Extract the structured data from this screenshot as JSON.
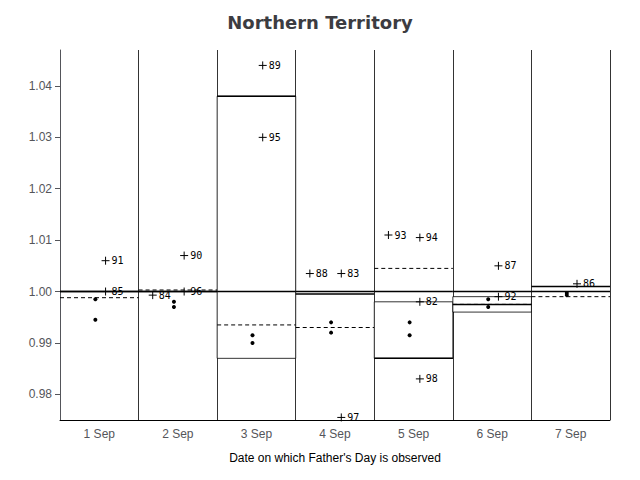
{
  "chart_data": {
    "type": "box",
    "title": "Northern Territory",
    "xlabel": "Date on which Father's Day is observed",
    "categories": [
      "1 Sep",
      "2 Sep",
      "3 Sep",
      "4 Sep",
      "5 Sep",
      "6 Sep",
      "7 Sep"
    ],
    "ylim": [
      0.975,
      1.047
    ],
    "yticks": [
      0.98,
      0.99,
      {
        "value": 1.0,
        "label": "1.00"
      },
      1.01,
      1.02,
      1.03,
      1.04
    ],
    "grid": "x",
    "reference_line": 1.0,
    "groups": [
      {
        "median": 1.0,
        "mean": 0.9988,
        "dots": [
          0.9945,
          0.9985
        ],
        "points": [
          {
            "label": "91",
            "value": 1.006
          },
          {
            "label": "85",
            "value": 1.0
          }
        ],
        "box": null
      },
      {
        "median": 1.0,
        "mean": 1.0003,
        "dots": [
          0.998,
          0.997
        ],
        "points": [
          {
            "label": "96",
            "value": 1.0
          },
          {
            "label": "84",
            "value": 0.9993
          },
          {
            "label": "90",
            "value": 1.007
          }
        ],
        "box": null
      },
      {
        "median": 1.038,
        "mean": 0.9935,
        "dots": [
          0.9915,
          0.99
        ],
        "points": [
          {
            "label": "89",
            "value": 1.044
          },
          {
            "label": "95",
            "value": 1.03
          }
        ],
        "box": {
          "top": 1.038,
          "bottom": 0.987
        }
      },
      {
        "median": 0.9995,
        "mean": 0.993,
        "dots": [
          0.994,
          0.992
        ],
        "points": [
          {
            "label": "83",
            "value": 1.0035
          },
          {
            "label": "88",
            "value": 1.0035
          },
          {
            "label": "97",
            "value": 0.9755
          }
        ],
        "box": null
      },
      {
        "median": 0.987,
        "mean": 1.0045,
        "dots": [
          0.994,
          0.9915
        ],
        "points": [
          {
            "label": "94",
            "value": 1.0105
          },
          {
            "label": "93",
            "value": 1.011
          },
          {
            "label": "82",
            "value": 0.998
          },
          {
            "label": "98",
            "value": 0.983
          }
        ],
        "box": {
          "top": 0.998,
          "bottom": 0.987
        }
      },
      {
        "median": 0.9975,
        "mean": 0.9975,
        "dots": [
          0.9985,
          0.997
        ],
        "points": [
          {
            "label": "87",
            "value": 1.005
          },
          {
            "label": "92",
            "value": 0.999
          }
        ],
        "box": {
          "top": 0.999,
          "bottom": 0.996
        }
      },
      {
        "median": 1.001,
        "mean": 0.999,
        "dots": [
          0.9997,
          0.9993
        ],
        "points": [
          {
            "label": "86",
            "value": 1.0015
          }
        ],
        "box": null
      }
    ]
  }
}
